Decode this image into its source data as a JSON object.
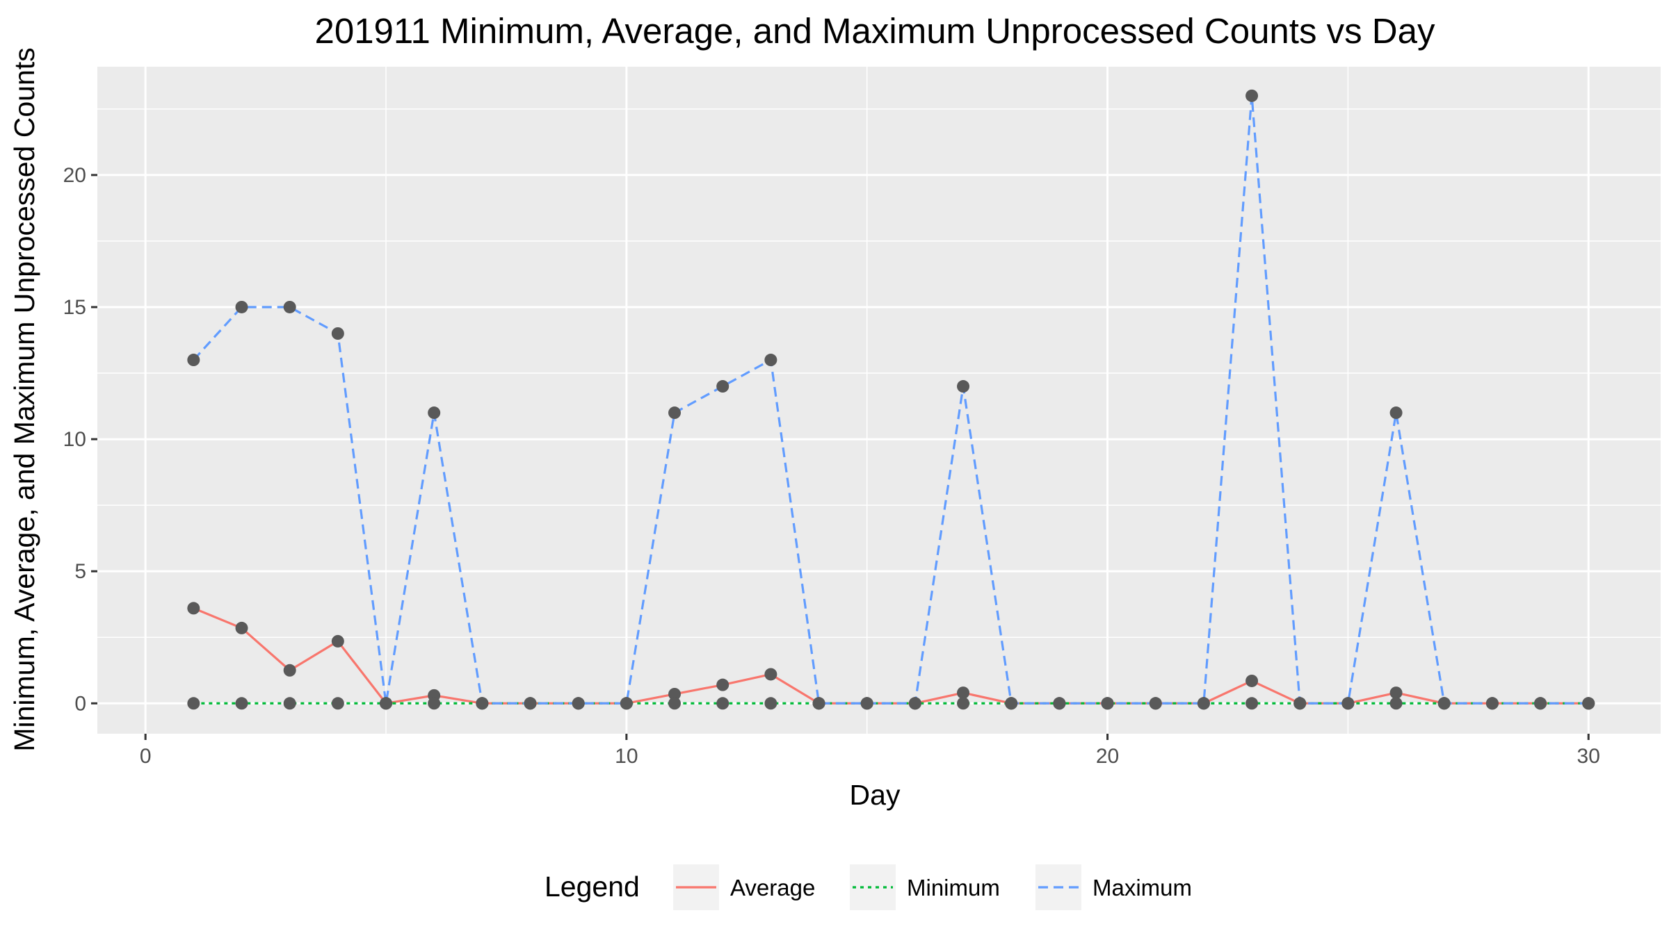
{
  "chart_data": {
    "type": "line",
    "title": "201911 Minimum, Average, and Maximum Unprocessed Counts vs Day",
    "xlabel": "Day",
    "ylabel": "Minimum, Average, and Maximum Unprocessed Counts",
    "xlim": [
      -1,
      31.5
    ],
    "ylim": [
      -1.15,
      24.1
    ],
    "x_ticks": [
      0,
      10,
      20,
      30
    ],
    "y_ticks": [
      0,
      5,
      10,
      15,
      20
    ],
    "x_tick_labels": [
      "0",
      "10",
      "20",
      "30"
    ],
    "y_tick_labels": [
      "0",
      "5",
      "10",
      "15",
      "20"
    ],
    "grid": true,
    "legend_position": "bottom",
    "legend_title": "Legend",
    "x": [
      1,
      2,
      3,
      4,
      5,
      6,
      7,
      8,
      9,
      10,
      11,
      12,
      13,
      14,
      15,
      16,
      17,
      18,
      19,
      20,
      21,
      22,
      23,
      24,
      25,
      26,
      27,
      28,
      29,
      30
    ],
    "series": [
      {
        "name": "Average",
        "color": "#F8766D",
        "dash": "solid",
        "values": [
          3.6,
          2.85,
          1.25,
          2.35,
          0,
          0.3,
          0,
          0,
          0,
          0,
          0.35,
          0.7,
          1.1,
          0,
          0,
          0,
          0.4,
          0,
          0,
          0,
          0,
          0,
          0.85,
          0,
          0,
          0.4,
          0,
          0,
          0,
          0
        ]
      },
      {
        "name": "Minimum",
        "color": "#00BA38",
        "dash": "dotted",
        "values": [
          0,
          0,
          0,
          0,
          0,
          0,
          0,
          0,
          0,
          0,
          0,
          0,
          0,
          0,
          0,
          0,
          0,
          0,
          0,
          0,
          0,
          0,
          0,
          0,
          0,
          0,
          0,
          0,
          0,
          0
        ]
      },
      {
        "name": "Maximum",
        "color": "#619CFF",
        "dash": "dashed",
        "values": [
          13,
          15,
          15,
          14,
          0,
          11,
          0,
          0,
          0,
          0,
          11,
          12,
          13,
          0,
          0,
          0,
          12,
          0,
          0,
          0,
          0,
          0,
          23,
          0,
          0,
          11,
          0,
          0,
          0,
          0
        ]
      }
    ],
    "point_color": "#595959"
  }
}
